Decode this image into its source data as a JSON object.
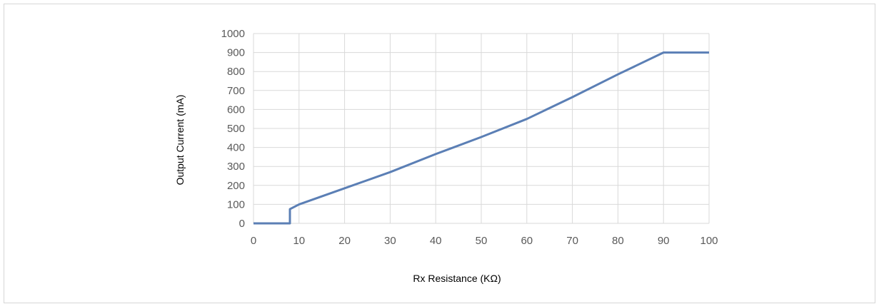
{
  "chart_data": {
    "type": "line",
    "title": "",
    "xlabel": "Rx Resistance (KΩ)",
    "ylabel": "Output Current (mA)",
    "xlim": [
      0,
      100
    ],
    "ylim": [
      0,
      1000
    ],
    "xticks": [
      0,
      10,
      20,
      30,
      40,
      50,
      60,
      70,
      80,
      90,
      100
    ],
    "yticks": [
      0,
      100,
      200,
      300,
      400,
      500,
      600,
      700,
      800,
      900,
      1000
    ],
    "grid": true,
    "legend": "none",
    "series": [
      {
        "color": "#5b7fb5",
        "x": [
          0,
          8,
          8,
          10,
          20,
          30,
          40,
          50,
          60,
          70,
          80,
          90,
          100
        ],
        "y": [
          0,
          0,
          75,
          100,
          185,
          270,
          365,
          455,
          550,
          665,
          785,
          900,
          900
        ]
      }
    ]
  }
}
